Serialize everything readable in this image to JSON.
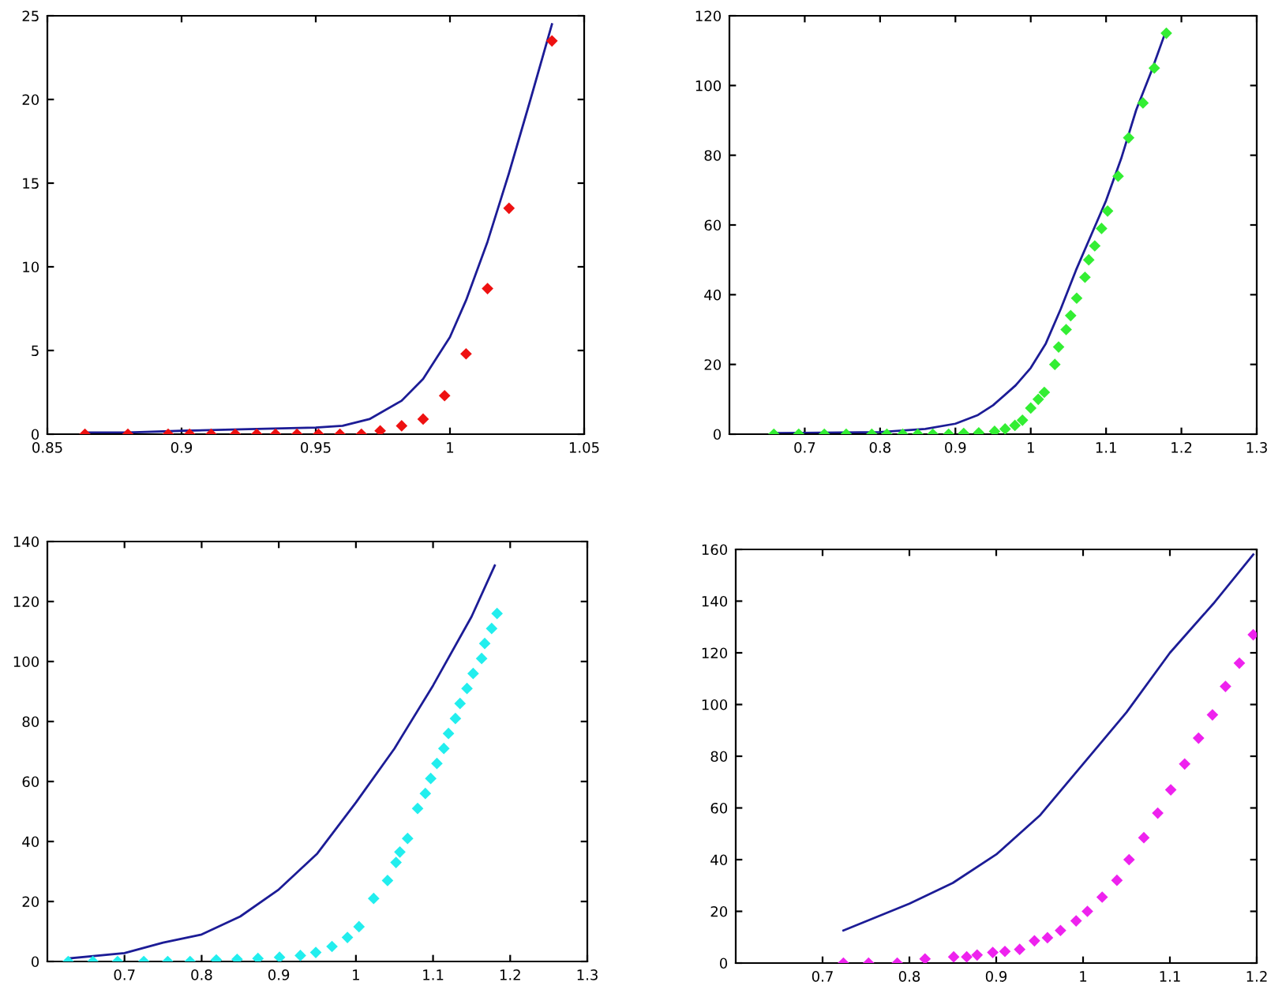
{
  "chart_data": [
    {
      "type": "scatter",
      "xlim": [
        0.85,
        1.05
      ],
      "xticks": [
        0.85,
        0.9,
        0.95,
        1,
        1.05
      ],
      "ylim": [
        0,
        25
      ],
      "yticks": [
        0,
        5,
        10,
        15,
        20,
        25
      ],
      "series": [
        {
          "type": "line",
          "color": "#1c1c96",
          "line_style": "solid",
          "marker": "none",
          "x": [
            0.864,
            0.88,
            0.9,
            0.925,
            0.95,
            0.96,
            0.97,
            0.982,
            0.99,
            1.0,
            1.006,
            1.014,
            1.022,
            1.03,
            1.038
          ],
          "values": [
            0.1,
            0.1,
            0.2,
            0.3,
            0.4,
            0.5,
            0.9,
            2.0,
            3.3,
            5.8,
            8.0,
            11.5,
            15.6,
            20,
            24.5
          ]
        },
        {
          "color": "#ee1111",
          "marker": "diamond",
          "x": [
            0.864,
            0.88,
            0.895,
            0.903,
            0.911,
            0.92,
            0.928,
            0.935,
            0.943,
            0.951,
            0.959,
            0.967,
            0.974,
            0.982,
            0.99,
            0.998,
            1.006,
            1.014,
            1.022,
            1.038
          ],
          "values": [
            0,
            0,
            0,
            0,
            0,
            0,
            0,
            0,
            0,
            0,
            0,
            0,
            0.2,
            0.5,
            0.9,
            2.3,
            4.8,
            8.7,
            13.5,
            23.5
          ]
        }
      ]
    },
    {
      "type": "scatter",
      "xlim": [
        0.6,
        1.3
      ],
      "xticks": [
        0.7,
        0.8,
        0.9,
        1,
        1.1,
        1.2,
        1.3
      ],
      "ylim": [
        0,
        120
      ],
      "yticks": [
        0,
        20,
        40,
        60,
        80,
        100,
        120
      ],
      "series": [
        {
          "type": "line",
          "color": "#1c1c96",
          "line_style": "solid",
          "marker": "none",
          "x": [
            0.66,
            0.8,
            0.86,
            0.9,
            0.93,
            0.95,
            0.98,
            1.0,
            1.02,
            1.04,
            1.06,
            1.08,
            1.1,
            1.12,
            1.14,
            1.16,
            1.18
          ],
          "values": [
            0.3,
            0.6,
            1.5,
            3,
            5.5,
            8.3,
            14,
            19,
            26,
            36,
            47,
            57,
            67,
            79,
            93,
            104,
            116
          ]
        },
        {
          "color": "#33ee33",
          "marker": "diamond",
          "x": [
            0.659,
            0.692,
            0.726,
            0.755,
            0.789,
            0.809,
            0.83,
            0.85,
            0.87,
            0.891,
            0.911,
            0.931,
            0.952,
            0.966,
            0.979,
            0.989,
            1.0,
            1.01,
            1.018,
            1.032,
            1.037,
            1.047,
            1.053,
            1.061,
            1.072,
            1.077,
            1.085,
            1.094,
            1.102,
            1.116,
            1.13,
            1.149,
            1.164,
            1.18
          ],
          "values": [
            0,
            0,
            0,
            0,
            0,
            0,
            0,
            0,
            0,
            0,
            0.2,
            0.4,
            0.8,
            1.5,
            2.5,
            4,
            7.5,
            10,
            12,
            20,
            25,
            30,
            34,
            39,
            45,
            50,
            54,
            59,
            64,
            74,
            85,
            95,
            105,
            115
          ]
        }
      ]
    },
    {
      "type": "scatter",
      "xlim": [
        0.6,
        1.3
      ],
      "xticks": [
        0.7,
        0.8,
        0.9,
        1,
        1.1,
        1.2,
        1.3
      ],
      "ylim": [
        0,
        140
      ],
      "yticks": [
        0,
        20,
        40,
        60,
        80,
        100,
        120,
        140
      ],
      "series": [
        {
          "type": "line",
          "color": "#1c1c96",
          "line_style": "solid",
          "marker": "none",
          "x": [
            0.627,
            0.7,
            0.75,
            0.8,
            0.85,
            0.9,
            0.95,
            1.0,
            1.05,
            1.1,
            1.15,
            1.18
          ],
          "values": [
            1,
            2.8,
            6.3,
            9,
            15,
            24,
            36,
            53,
            71,
            92,
            115,
            132
          ]
        },
        {
          "color": "#22eeee",
          "marker": "diamond",
          "x": [
            0.627,
            0.659,
            0.691,
            0.725,
            0.756,
            0.785,
            0.819,
            0.846,
            0.873,
            0.901,
            0.928,
            0.948,
            0.969,
            0.989,
            1.004,
            1.023,
            1.041,
            1.052,
            1.057,
            1.067,
            1.08,
            1.09,
            1.097,
            1.105,
            1.114,
            1.12,
            1.129,
            1.135,
            1.144,
            1.152,
            1.163,
            1.167,
            1.176,
            1.183
          ],
          "values": [
            0,
            0,
            0,
            0,
            0,
            0,
            0.5,
            0.7,
            1,
            1.4,
            2,
            3,
            5,
            8,
            11.6,
            21,
            27,
            33,
            36.5,
            41,
            51,
            56,
            61,
            66,
            71,
            76,
            81,
            86,
            91,
            96,
            101,
            106,
            111,
            116
          ]
        }
      ]
    },
    {
      "type": "scatter",
      "xlim": [
        0.6,
        1.2
      ],
      "xticks": [
        0.7,
        0.8,
        0.9,
        1,
        1.1,
        1.2
      ],
      "ylim": [
        0,
        160
      ],
      "yticks": [
        0,
        20,
        40,
        60,
        80,
        100,
        120,
        140,
        160
      ],
      "series": [
        {
          "type": "line",
          "color": "#1c1c96",
          "line_style": "solid",
          "marker": "none",
          "x": [
            0.724,
            0.8,
            0.85,
            0.9,
            0.95,
            1.0,
            1.05,
            1.1,
            1.15,
            1.196
          ],
          "values": [
            12.6,
            23,
            31,
            42,
            57,
            77,
            97,
            120,
            139,
            158
          ]
        },
        {
          "color": "#ee22ee",
          "marker": "diamond",
          "x": [
            0.724,
            0.753,
            0.786,
            0.818,
            0.851,
            0.866,
            0.878,
            0.896,
            0.91,
            0.927,
            0.944,
            0.959,
            0.974,
            0.992,
            1.005,
            1.022,
            1.039,
            1.053,
            1.07,
            1.086,
            1.101,
            1.117,
            1.133,
            1.149,
            1.164,
            1.18,
            1.196
          ],
          "values": [
            0,
            0,
            0,
            1.6,
            2.4,
            2.4,
            3.1,
            4.1,
            4.5,
            5.3,
            8.6,
            9.8,
            12.6,
            16.3,
            20,
            25.5,
            32,
            40,
            48.5,
            58,
            67,
            77,
            87,
            96,
            107,
            116,
            127
          ]
        }
      ]
    }
  ]
}
